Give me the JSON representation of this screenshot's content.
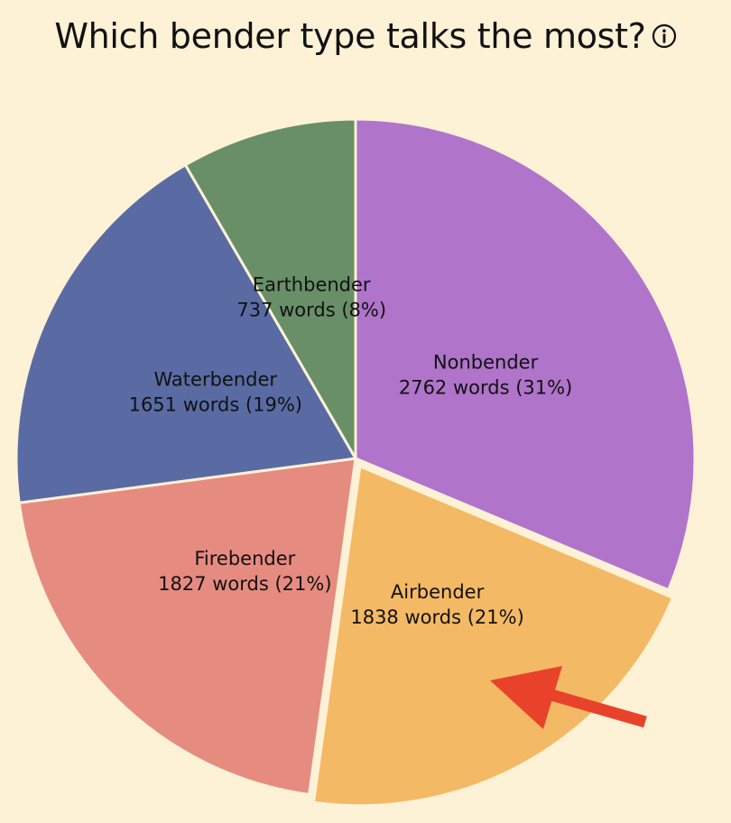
{
  "title": "Which bender type talks the most?",
  "info_icon": "info-circle-icon",
  "chart_data": {
    "type": "pie",
    "title": "Which bender type talks the most?",
    "unit": "words",
    "slices": [
      {
        "name": "Nonbender",
        "value": 2762,
        "percent": 31,
        "label": "2762 words (31%)",
        "color": "#b074cb"
      },
      {
        "name": "Airbender",
        "value": 1838,
        "percent": 21,
        "label": "1838 words (21%)",
        "color": "#f4b964",
        "highlighted": true
      },
      {
        "name": "Firebender",
        "value": 1827,
        "percent": 21,
        "label": "1827 words (21%)",
        "color": "#e68b80"
      },
      {
        "name": "Waterbender",
        "value": 1651,
        "percent": 19,
        "label": "1651 words (19%)",
        "color": "#5a6ba4"
      },
      {
        "name": "Earthbender",
        "value": 737,
        "percent": 8,
        "label": "737 words (8%)",
        "color": "#688f67"
      }
    ],
    "annotation": {
      "type": "arrow",
      "points_to": "Airbender",
      "color": "#e8432a"
    }
  }
}
